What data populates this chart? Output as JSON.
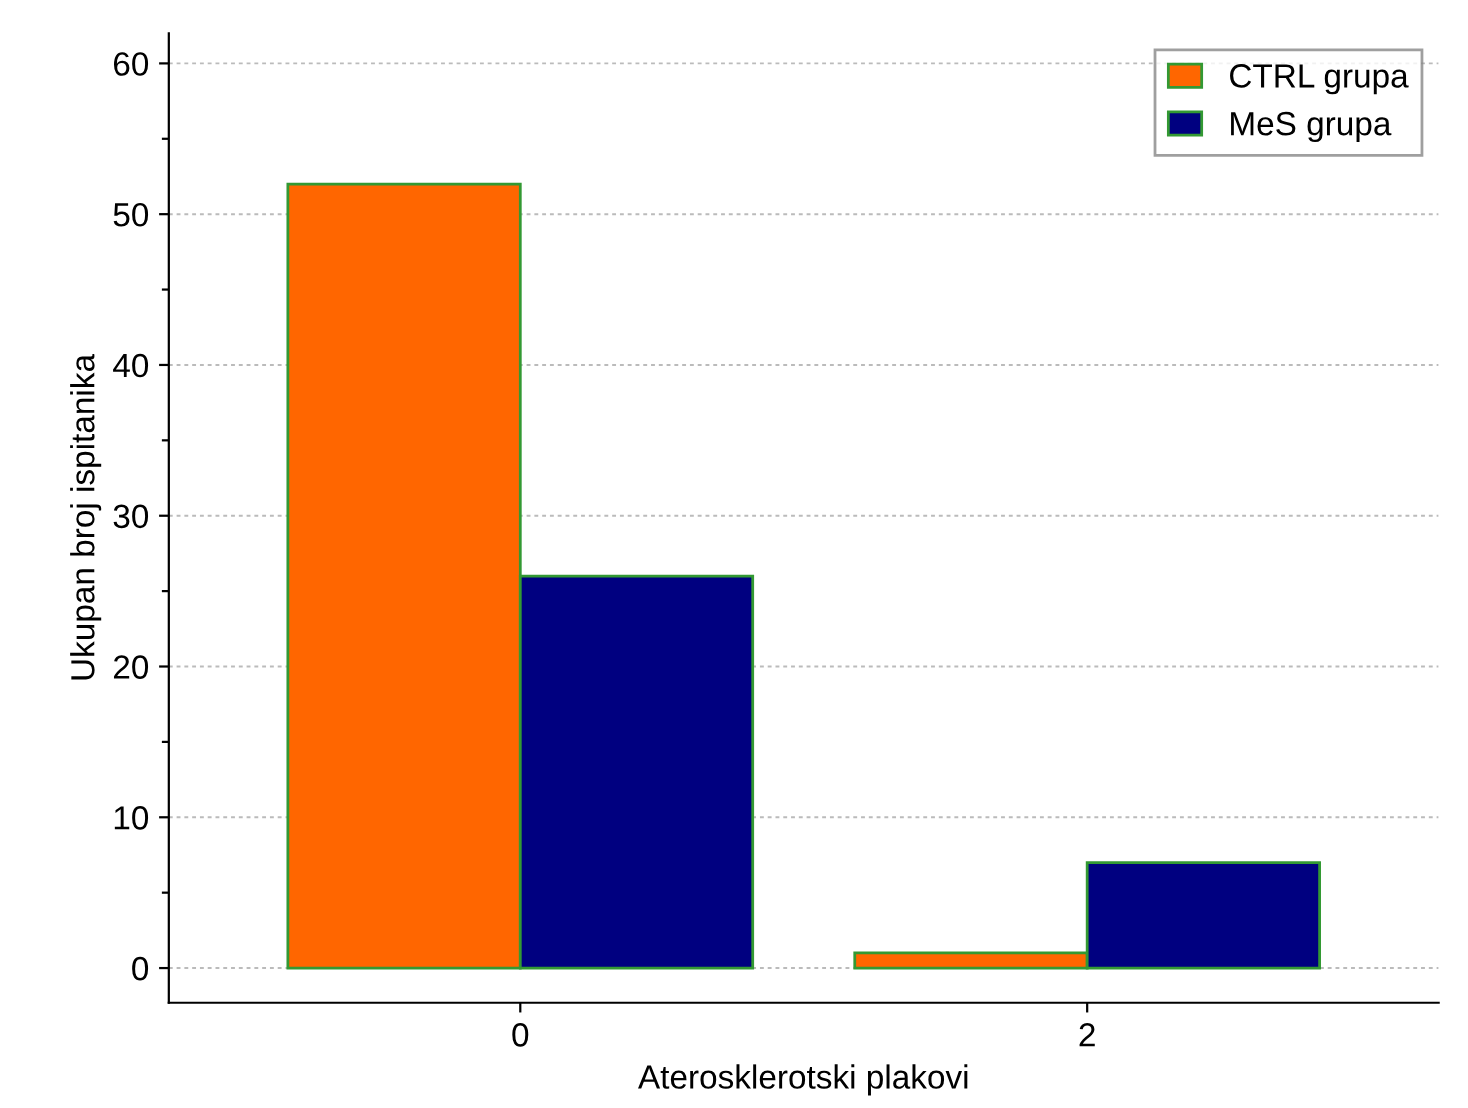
{
  "chart_data": {
    "type": "bar",
    "xlabel": "Aterosklerotski plakovi",
    "ylabel": "Ukupan broj ispitanika",
    "categories": [
      "0",
      "2"
    ],
    "series": [
      {
        "name": "CTRL grupa",
        "color": "#ff6600",
        "values": [
          52,
          1
        ]
      },
      {
        "name": "MeS grupa",
        "color": "#000080",
        "values": [
          26,
          7
        ]
      }
    ],
    "ylim": [
      -2.3,
      62
    ],
    "yticks": [
      0,
      {
        "value": 5,
        "label": null
      },
      10,
      {
        "value": 15,
        "label": null
      },
      20,
      {
        "value": 25,
        "label": null
      },
      30,
      {
        "value": 35,
        "label": null
      },
      40,
      {
        "value": 45,
        "label": null
      },
      50,
      {
        "value": 55,
        "label": null
      },
      60
    ],
    "grid": "y",
    "legend": "top right"
  }
}
